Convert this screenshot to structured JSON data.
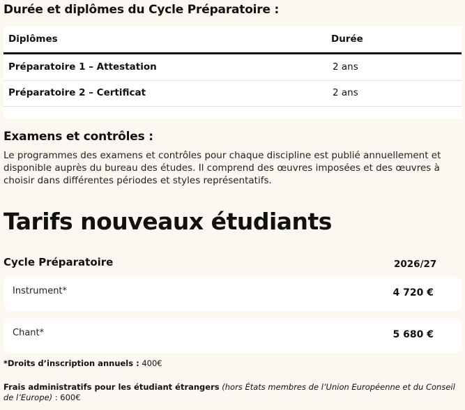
{
  "duration_section": {
    "title": "Durée et diplômes du Cycle Préparatoire :",
    "headers": [
      "Diplômes",
      "Durée"
    ],
    "rows": [
      [
        "Préparatoire 1 – Attestation",
        "2 ans"
      ],
      [
        "Préparatoire 2 – Certificat",
        "2 ans"
      ]
    ]
  },
  "exams_section": {
    "title": "Examens et contrôles :",
    "text": "Le programmes des examens et contrôles pour chaque discipline est publié annuellement et disponible auprès du bureau des études. Il comprend des œuvres imposées et des œuvres à choisir dans différentes périodes et styles représentatifs."
  },
  "tarifs": {
    "title": "Tarifs nouveaux étudiants",
    "cycle_label": "Cycle Préparatoire",
    "year": "2026/27",
    "items": [
      {
        "label": "Instrument*",
        "price": "4 720 €"
      },
      {
        "label": "Chant*",
        "price": "5 680 €"
      }
    ],
    "note1_bold": "*Droits d’inscription annuels :",
    "note1_value": " 400€",
    "note2_bold": "Frais administratifs pour les étudiant étrangers",
    "note2_italic": " (hors États membres de l’Union Européenne et du Conseil de l’Europe)",
    "note2_value": " : 600€"
  }
}
